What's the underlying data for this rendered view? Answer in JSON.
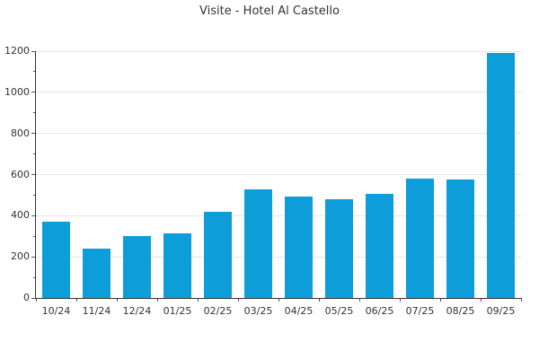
{
  "chart_data": {
    "type": "bar",
    "title": "Visite - Hotel Al Castello",
    "categories": [
      "10/24",
      "11/24",
      "12/24",
      "01/25",
      "02/25",
      "03/25",
      "04/25",
      "05/25",
      "06/25",
      "07/25",
      "08/25",
      "09/25"
    ],
    "values": [
      370,
      240,
      300,
      315,
      420,
      530,
      495,
      480,
      505,
      580,
      575,
      1190
    ],
    "xlabel": "",
    "ylabel": "",
    "ylim": [
      0,
      1200
    ],
    "y_ticks": [
      0,
      200,
      400,
      600,
      800,
      1000,
      1200
    ],
    "y_minor_ticks": [
      100,
      300,
      500,
      700,
      900,
      1100
    ],
    "grid": "horizontal-major",
    "legend": "none",
    "colors": {
      "bar": "#0d9ed9",
      "grid": "#e5e5e5",
      "axis": "#333333",
      "tick": "#555555",
      "text": "#333333",
      "background": "#ffffff"
    }
  }
}
